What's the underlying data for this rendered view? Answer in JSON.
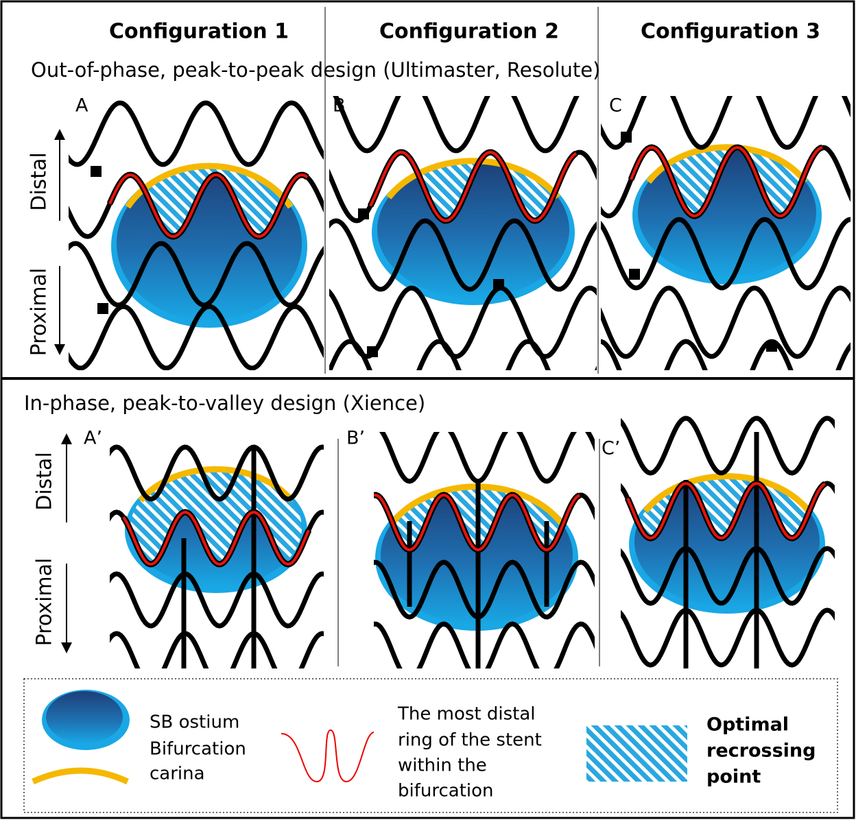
{
  "headers": [
    "Configuration 1",
    "Configuration 2",
    "Configuration 3"
  ],
  "sections": [
    {
      "title": "Out-of-phase, peak-to-peak design (Ultimaster, Resolute)",
      "panels": [
        "A",
        "B",
        "C"
      ],
      "distal": "Distal",
      "proximal": "Proximal"
    },
    {
      "title": "In-phase, peak-to-valley design (Xience)",
      "panels": [
        "A’",
        "B’",
        "C’"
      ],
      "distal": "Distal",
      "proximal": "Proximal"
    }
  ],
  "legend": {
    "sb_ostium": "SB ostium",
    "carina": [
      "Bifurcation",
      "carina"
    ],
    "ring": [
      "The most distal",
      "ring of the stent",
      "within the",
      "bifurcation"
    ],
    "optimal": [
      "Optimal",
      "recrossing",
      "point"
    ]
  }
}
